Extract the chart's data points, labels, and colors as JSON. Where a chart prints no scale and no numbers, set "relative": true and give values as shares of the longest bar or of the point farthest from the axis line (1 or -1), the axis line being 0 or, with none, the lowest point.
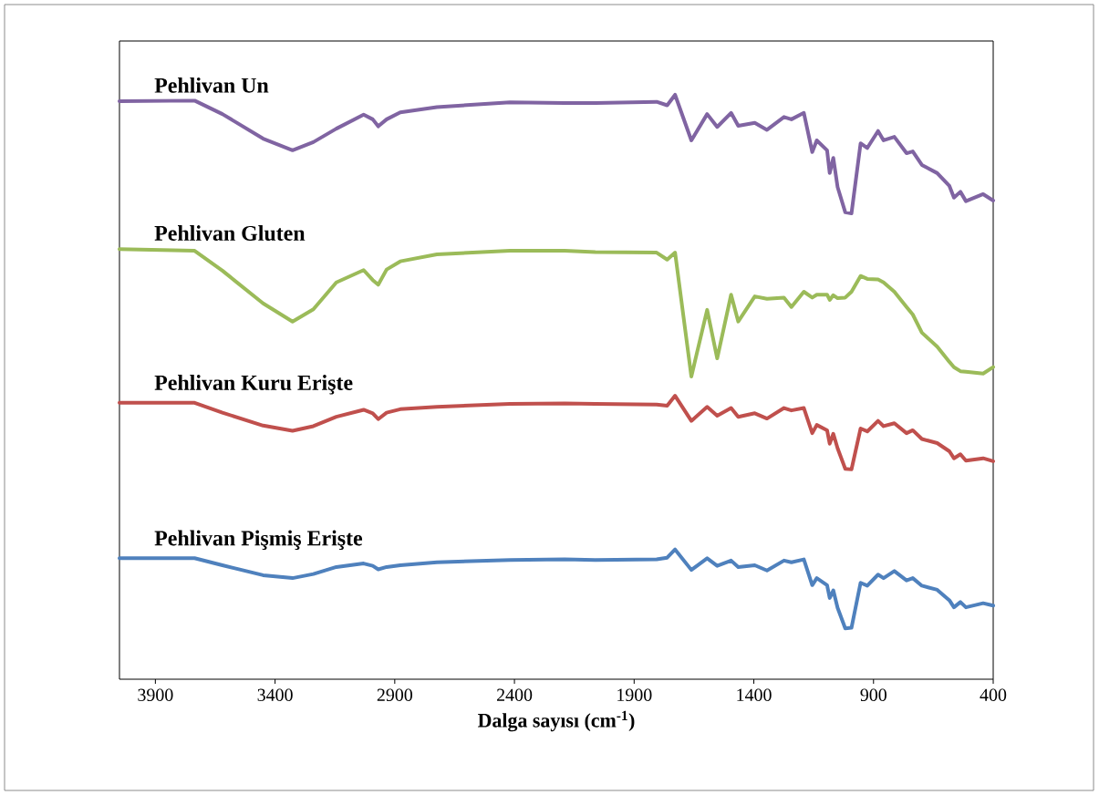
{
  "chart_data": {
    "type": "line",
    "relative": true,
    "xlabel": "Dalga sayısı (cm$^{-1}$)",
    "xlim": [
      4050,
      400
    ],
    "xticks": [
      3900,
      3400,
      2900,
      2400,
      1900,
      1400,
      900,
      400
    ],
    "x": [
      4050,
      3736,
      3620,
      3450,
      3327,
      3240,
      3144,
      3030,
      2992,
      2969,
      2934,
      2877,
      2724,
      2419,
      2190,
      2062,
      1806,
      1762,
      1729,
      1661,
      1595,
      1553,
      1495,
      1465,
      1396,
      1345,
      1274,
      1243,
      1191,
      1156,
      1137,
      1094,
      1083,
      1068,
      1050,
      1018,
      992,
      954,
      926,
      881,
      858,
      813,
      762,
      736,
      698,
      634,
      583,
      564,
      537,
      514,
      442,
      400
    ],
    "series": [
      {
        "name": "Pehlivan  Un",
        "color": "#8064a2",
        "values": [
          0.989,
          0.99,
          0.967,
          0.925,
          0.905,
          0.919,
          0.942,
          0.966,
          0.958,
          0.946,
          0.958,
          0.97,
          0.979,
          0.987,
          0.986,
          0.986,
          0.988,
          0.982,
          1,
          0.922,
          0.967,
          0.945,
          0.969,
          0.947,
          0.952,
          0.94,
          0.962,
          0.958,
          0.969,
          0.902,
          0.922,
          0.905,
          0.866,
          0.892,
          0.842,
          0.799,
          0.797,
          0.917,
          0.909,
          0.938,
          0.922,
          0.928,
          0.9,
          0.903,
          0.88,
          0.866,
          0.844,
          0.824,
          0.834,
          0.818,
          0.83,
          0.819
        ]
      },
      {
        "name": "Pehlivan Gluten",
        "color": "#9bbb59",
        "values": [
          0.736,
          0.733,
          0.699,
          0.643,
          0.612,
          0.633,
          0.679,
          0.7,
          0.683,
          0.675,
          0.701,
          0.715,
          0.727,
          0.733,
          0.733,
          0.731,
          0.73,
          0.718,
          0.73,
          0.518,
          0.632,
          0.549,
          0.658,
          0.612,
          0.655,
          0.651,
          0.653,
          0.637,
          0.663,
          0.653,
          0.658,
          0.658,
          0.649,
          0.657,
          0.652,
          0.653,
          0.663,
          0.69,
          0.685,
          0.684,
          0.679,
          0.663,
          0.637,
          0.624,
          0.593,
          0.569,
          0.543,
          0.534,
          0.527,
          0.526,
          0.523,
          0.534
        ]
      },
      {
        "name": "Pehlivan Kuru Erişte",
        "color": "#c0504d",
        "values": [
          0.473,
          0.473,
          0.456,
          0.434,
          0.425,
          0.433,
          0.449,
          0.461,
          0.455,
          0.445,
          0.456,
          0.462,
          0.466,
          0.471,
          0.472,
          0.471,
          0.47,
          0.468,
          0.485,
          0.442,
          0.466,
          0.451,
          0.464,
          0.449,
          0.455,
          0.446,
          0.464,
          0.46,
          0.464,
          0.421,
          0.435,
          0.426,
          0.403,
          0.42,
          0.395,
          0.36,
          0.359,
          0.429,
          0.424,
          0.442,
          0.433,
          0.438,
          0.421,
          0.426,
          0.411,
          0.404,
          0.39,
          0.378,
          0.385,
          0.374,
          0.378,
          0.373
        ]
      },
      {
        "name": "Pehlivan Pişmiş Erişte",
        "color": "#4f81bd",
        "values": [
          0.207,
          0.207,
          0.195,
          0.178,
          0.173,
          0.18,
          0.192,
          0.198,
          0.194,
          0.188,
          0.192,
          0.195,
          0.2,
          0.204,
          0.205,
          0.204,
          0.205,
          0.208,
          0.222,
          0.187,
          0.207,
          0.194,
          0.203,
          0.192,
          0.195,
          0.186,
          0.203,
          0.2,
          0.205,
          0.161,
          0.173,
          0.161,
          0.139,
          0.152,
          0.122,
          0.087,
          0.088,
          0.165,
          0.16,
          0.179,
          0.173,
          0.185,
          0.169,
          0.173,
          0.16,
          0.153,
          0.135,
          0.123,
          0.132,
          0.123,
          0.13,
          0.126
        ]
      }
    ]
  }
}
